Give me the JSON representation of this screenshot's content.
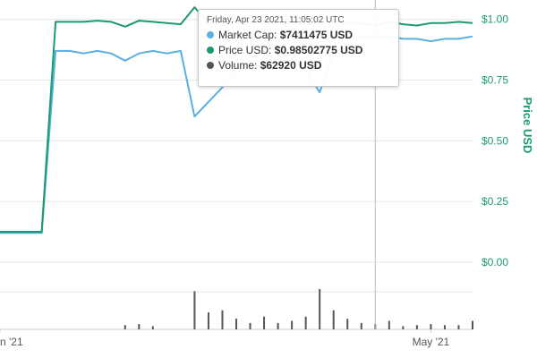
{
  "chart_data": {
    "type": "line",
    "x_range": [
      "2021-03-31",
      "2021-05-04"
    ],
    "x_ticks": [
      {
        "date": "2021-03-31",
        "label": "n '21"
      },
      {
        "date": "2021-05-01",
        "label": "May '21"
      }
    ],
    "y_right_axis": {
      "label": "Price USD",
      "range": [
        -0.1,
        1.08
      ],
      "ticks": [
        {
          "value": 1.0,
          "label": "$1.00"
        },
        {
          "value": 0.75,
          "label": "$0.75"
        },
        {
          "value": 0.5,
          "label": "$0.50"
        },
        {
          "value": 0.25,
          "label": "$0.25"
        },
        {
          "value": 0.0,
          "label": "$0.00"
        }
      ]
    },
    "series": [
      {
        "name": "Market Cap",
        "color": "#5aafe0",
        "axis_hidden": true,
        "x": [
          "2021-03-31",
          "2021-04-01",
          "2021-04-02",
          "2021-04-03",
          "2021-04-04",
          "2021-04-05",
          "2021-04-06",
          "2021-04-07",
          "2021-04-08",
          "2021-04-09",
          "2021-04-10",
          "2021-04-11",
          "2021-04-12",
          "2021-04-13",
          "2021-04-14",
          "2021-04-15",
          "2021-04-16",
          "2021-04-17",
          "2021-04-18",
          "2021-04-19",
          "2021-04-20",
          "2021-04-21",
          "2021-04-22",
          "2021-04-23",
          "2021-04-24",
          "2021-04-25",
          "2021-04-26",
          "2021-04-27",
          "2021-04-28",
          "2021-04-29",
          "2021-04-30",
          "2021-05-01",
          "2021-05-02",
          "2021-05-03",
          "2021-05-04"
        ],
        "values": [
          0.12,
          0.12,
          0.12,
          0.12,
          0.87,
          0.87,
          0.86,
          0.87,
          0.86,
          0.83,
          0.86,
          0.87,
          0.86,
          0.87,
          0.6,
          0.66,
          0.72,
          0.78,
          0.82,
          0.8,
          0.82,
          0.84,
          0.79,
          0.7,
          0.86,
          0.86,
          0.93,
          0.93,
          0.93,
          0.92,
          0.92,
          0.91,
          0.92,
          0.92,
          0.93
        ]
      },
      {
        "name": "Price USD",
        "color": "#1a9b6c",
        "axis": "right",
        "x": [
          "2021-03-31",
          "2021-04-01",
          "2021-04-02",
          "2021-04-03",
          "2021-04-04",
          "2021-04-05",
          "2021-04-06",
          "2021-04-07",
          "2021-04-08",
          "2021-04-09",
          "2021-04-10",
          "2021-04-11",
          "2021-04-12",
          "2021-04-13",
          "2021-04-14",
          "2021-04-15",
          "2021-04-16",
          "2021-04-17",
          "2021-04-18",
          "2021-04-19",
          "2021-04-20",
          "2021-04-21",
          "2021-04-22",
          "2021-04-23",
          "2021-04-24",
          "2021-04-25",
          "2021-04-26",
          "2021-04-27",
          "2021-04-28",
          "2021-04-29",
          "2021-04-30",
          "2021-05-01",
          "2021-05-02",
          "2021-05-03",
          "2021-05-04"
        ],
        "values": [
          0.125,
          0.125,
          0.125,
          0.125,
          0.99,
          0.99,
          0.99,
          0.995,
          0.99,
          0.97,
          0.995,
          0.99,
          0.985,
          0.98,
          1.05,
          0.985,
          0.985,
          0.99,
          0.99,
          0.99,
          0.985,
          0.99,
          0.98,
          0.985,
          0.995,
          0.985,
          0.985,
          0.975,
          0.99,
          0.98,
          0.975,
          0.985,
          0.985,
          0.99,
          0.985
        ]
      },
      {
        "name": "Volume",
        "color": "#555555",
        "type": "bar",
        "axis_hidden": true,
        "x": [
          "2021-04-01",
          "2021-04-02",
          "2021-04-03",
          "2021-04-04",
          "2021-04-05",
          "2021-04-06",
          "2021-04-07",
          "2021-04-08",
          "2021-04-09",
          "2021-04-10",
          "2021-04-11",
          "2021-04-12",
          "2021-04-13",
          "2021-04-14",
          "2021-04-15",
          "2021-04-16",
          "2021-04-17",
          "2021-04-18",
          "2021-04-19",
          "2021-04-20",
          "2021-04-21",
          "2021-04-22",
          "2021-04-23",
          "2021-04-24",
          "2021-04-25",
          "2021-04-26",
          "2021-04-27",
          "2021-04-28",
          "2021-04-29",
          "2021-04-30",
          "2021-05-01",
          "2021-05-02",
          "2021-05-03",
          "2021-05-04"
        ],
        "values": [
          0,
          0,
          0,
          0,
          0,
          0,
          0,
          0,
          4,
          5,
          3,
          0,
          0,
          36,
          16,
          18,
          10,
          6,
          12,
          6,
          8,
          12,
          38,
          18,
          10,
          6,
          5,
          8,
          3,
          4,
          5,
          4,
          4,
          8
        ]
      }
    ],
    "hover_date": "2021-04-27"
  },
  "tooltip": {
    "date": "Friday, Apr 23 2021, 11:05:02 UTC",
    "items": [
      {
        "label": "Market Cap:",
        "value": "$7411475 USD",
        "color": "#5aafe0"
      },
      {
        "label": "Price USD:",
        "value": "$0.98502775 USD",
        "color": "#1a9b6c"
      },
      {
        "label": "Volume:",
        "value": "$62920 USD",
        "color": "#555555"
      }
    ]
  },
  "colors": {
    "grid": "#e6e6e6",
    "crosshair": "#bbbbbb",
    "axis_text": "#555555",
    "price_axis_text": "#1a9b6c"
  }
}
